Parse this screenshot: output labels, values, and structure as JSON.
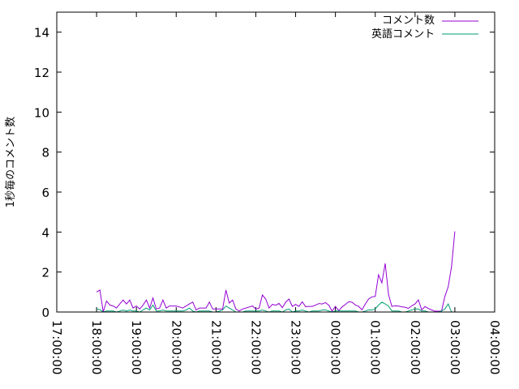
{
  "chart_data": {
    "type": "line",
    "title": "",
    "xlabel": "",
    "ylabel": "1秒毎のコメント数",
    "xlim": [
      "17:00:00",
      "04:00:00"
    ],
    "ylim": [
      0,
      15
    ],
    "x_ticks": [
      "17:00:00",
      "18:00:00",
      "19:00:00",
      "20:00:00",
      "21:00:00",
      "22:00:00",
      "23:00:00",
      "00:00:00",
      "01:00:00",
      "02:00:00",
      "03:00:00",
      "04:00:00"
    ],
    "y_ticks": [
      "0",
      "2",
      "4",
      "6",
      "8",
      "10",
      "12",
      "14"
    ],
    "grid": false,
    "legend_position": "top-right",
    "x": [
      "18:00",
      "18:05",
      "18:10",
      "18:15",
      "18:20",
      "18:25",
      "18:30",
      "18:35",
      "18:40",
      "18:45",
      "18:50",
      "18:55",
      "19:00",
      "19:05",
      "19:10",
      "19:15",
      "19:20",
      "19:25",
      "19:30",
      "19:35",
      "19:40",
      "19:45",
      "19:50",
      "19:55",
      "20:00",
      "20:05",
      "20:10",
      "20:15",
      "20:20",
      "20:25",
      "20:30",
      "20:35",
      "20:40",
      "20:45",
      "20:50",
      "20:55",
      "21:00",
      "21:05",
      "21:10",
      "21:15",
      "21:20",
      "21:25",
      "21:30",
      "21:35",
      "21:40",
      "21:45",
      "21:50",
      "21:55",
      "22:00",
      "22:05",
      "22:10",
      "22:15",
      "22:20",
      "22:25",
      "22:30",
      "22:35",
      "22:40",
      "22:45",
      "22:50",
      "22:55",
      "23:00",
      "23:05",
      "23:10",
      "23:15",
      "23:20",
      "23:25",
      "23:30",
      "23:35",
      "23:40",
      "23:45",
      "23:50",
      "23:55",
      "00:00",
      "00:05",
      "00:10",
      "00:15",
      "00:20",
      "00:25",
      "00:30",
      "00:35",
      "00:40",
      "00:45",
      "00:50",
      "00:55",
      "01:00",
      "01:05",
      "01:10",
      "01:15",
      "01:20",
      "01:25",
      "01:30",
      "01:35",
      "01:40",
      "01:45",
      "01:50",
      "01:55",
      "02:00",
      "02:05",
      "02:10",
      "02:15",
      "02:20",
      "02:25",
      "02:30",
      "02:35",
      "02:40",
      "02:45",
      "02:50",
      "02:55",
      "03:00"
    ],
    "series": [
      {
        "name": "コメント数",
        "color": "#9400d3",
        "values": [
          1.0,
          1.1,
          0.0,
          0.55,
          0.35,
          0.3,
          0.2,
          0.4,
          0.6,
          0.4,
          0.6,
          0.2,
          0.3,
          0.15,
          0.35,
          0.6,
          0.2,
          0.7,
          0.15,
          0.2,
          0.6,
          0.2,
          0.3,
          0.3,
          0.3,
          0.25,
          0.2,
          0.3,
          0.4,
          0.5,
          0.1,
          0.2,
          0.2,
          0.2,
          0.5,
          0.15,
          0.15,
          0.15,
          0.15,
          1.1,
          0.45,
          0.6,
          0.15,
          0.05,
          0.15,
          0.2,
          0.25,
          0.3,
          0.15,
          0.2,
          0.85,
          0.65,
          0.2,
          0.38,
          0.34,
          0.43,
          0.22,
          0.5,
          0.65,
          0.28,
          0.38,
          0.28,
          0.51,
          0.27,
          0.28,
          0.28,
          0.35,
          0.42,
          0.4,
          0.47,
          0.34,
          0.04,
          0.28,
          0.07,
          0.25,
          0.38,
          0.51,
          0.49,
          0.35,
          0.28,
          0.11,
          0.4,
          0.65,
          0.76,
          0.78,
          1.86,
          1.46,
          2.43,
          0.88,
          0.28,
          0.31,
          0.3,
          0.26,
          0.24,
          0.18,
          0.31,
          0.4,
          0.61,
          0.11,
          0.27,
          0.18,
          0.1,
          0.04,
          0.04,
          0.05,
          0.78,
          1.26,
          2.27,
          4.03
        ]
      },
      {
        "name": "英語コメント",
        "color": "#009e73",
        "values": [
          0.15,
          0.12,
          0,
          0.05,
          0.05,
          0.05,
          0,
          0.05,
          0.1,
          0.05,
          0.1,
          0.05,
          0.05,
          0,
          0.1,
          0.2,
          0.1,
          0.35,
          0.05,
          0.05,
          0.1,
          0.05,
          0.05,
          0.05,
          0.05,
          0.05,
          0.05,
          0.1,
          0.2,
          0.05,
          0,
          0.05,
          0.05,
          0.05,
          0.05,
          0,
          0,
          0.05,
          0.1,
          0.3,
          0.2,
          0.1,
          0,
          0,
          0,
          0.05,
          0.05,
          0.05,
          0.05,
          0.05,
          0.1,
          0.05,
          0,
          0.05,
          0.05,
          0.05,
          0,
          0.1,
          0.15,
          0,
          0.05,
          0.05,
          0.1,
          0.05,
          0,
          0.05,
          0.05,
          0.05,
          0.1,
          0.1,
          0.05,
          0,
          0.05,
          0.05,
          0.05,
          0.05,
          0.05,
          0.05,
          0.05,
          0,
          0,
          0.05,
          0.1,
          0.1,
          0.15,
          0.35,
          0.49,
          0.4,
          0.3,
          0.05,
          0.05,
          0.05,
          0,
          0,
          0.05,
          0.1,
          0.15,
          0.15,
          0.05,
          0.05,
          0,
          0,
          0,
          0,
          0.05,
          0.15,
          0.4,
          0,
          0
        ]
      }
    ]
  }
}
